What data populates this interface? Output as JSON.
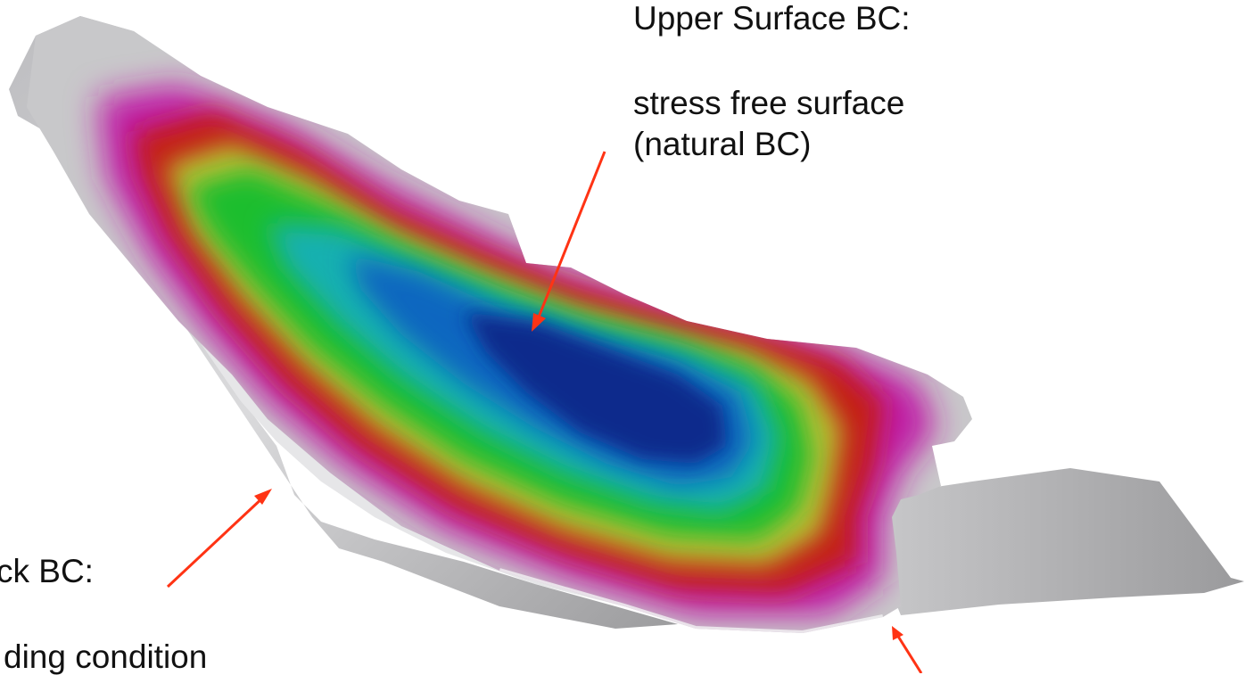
{
  "annotations": {
    "upper_surface": {
      "title": "Upper Surface BC:",
      "line1": "stress free surface",
      "line2": "(natural BC)"
    },
    "bedrock": {
      "title": "ck BC:",
      "line1": "ding condition"
    }
  },
  "colors": {
    "arrow": "#ff3314",
    "text": "#111111",
    "surface_grey": "#c9c9cb",
    "colormap": [
      "#0a2c8c",
      "#1066c0",
      "#14b0b0",
      "#1ebe2e",
      "#b8c032",
      "#c41a14",
      "#bf1aa6",
      "#bababa"
    ]
  },
  "icons": [
    "arrow-to-upper-surface-icon",
    "arrow-to-bed-icon",
    "arrow-to-bed-lower-right-icon"
  ]
}
